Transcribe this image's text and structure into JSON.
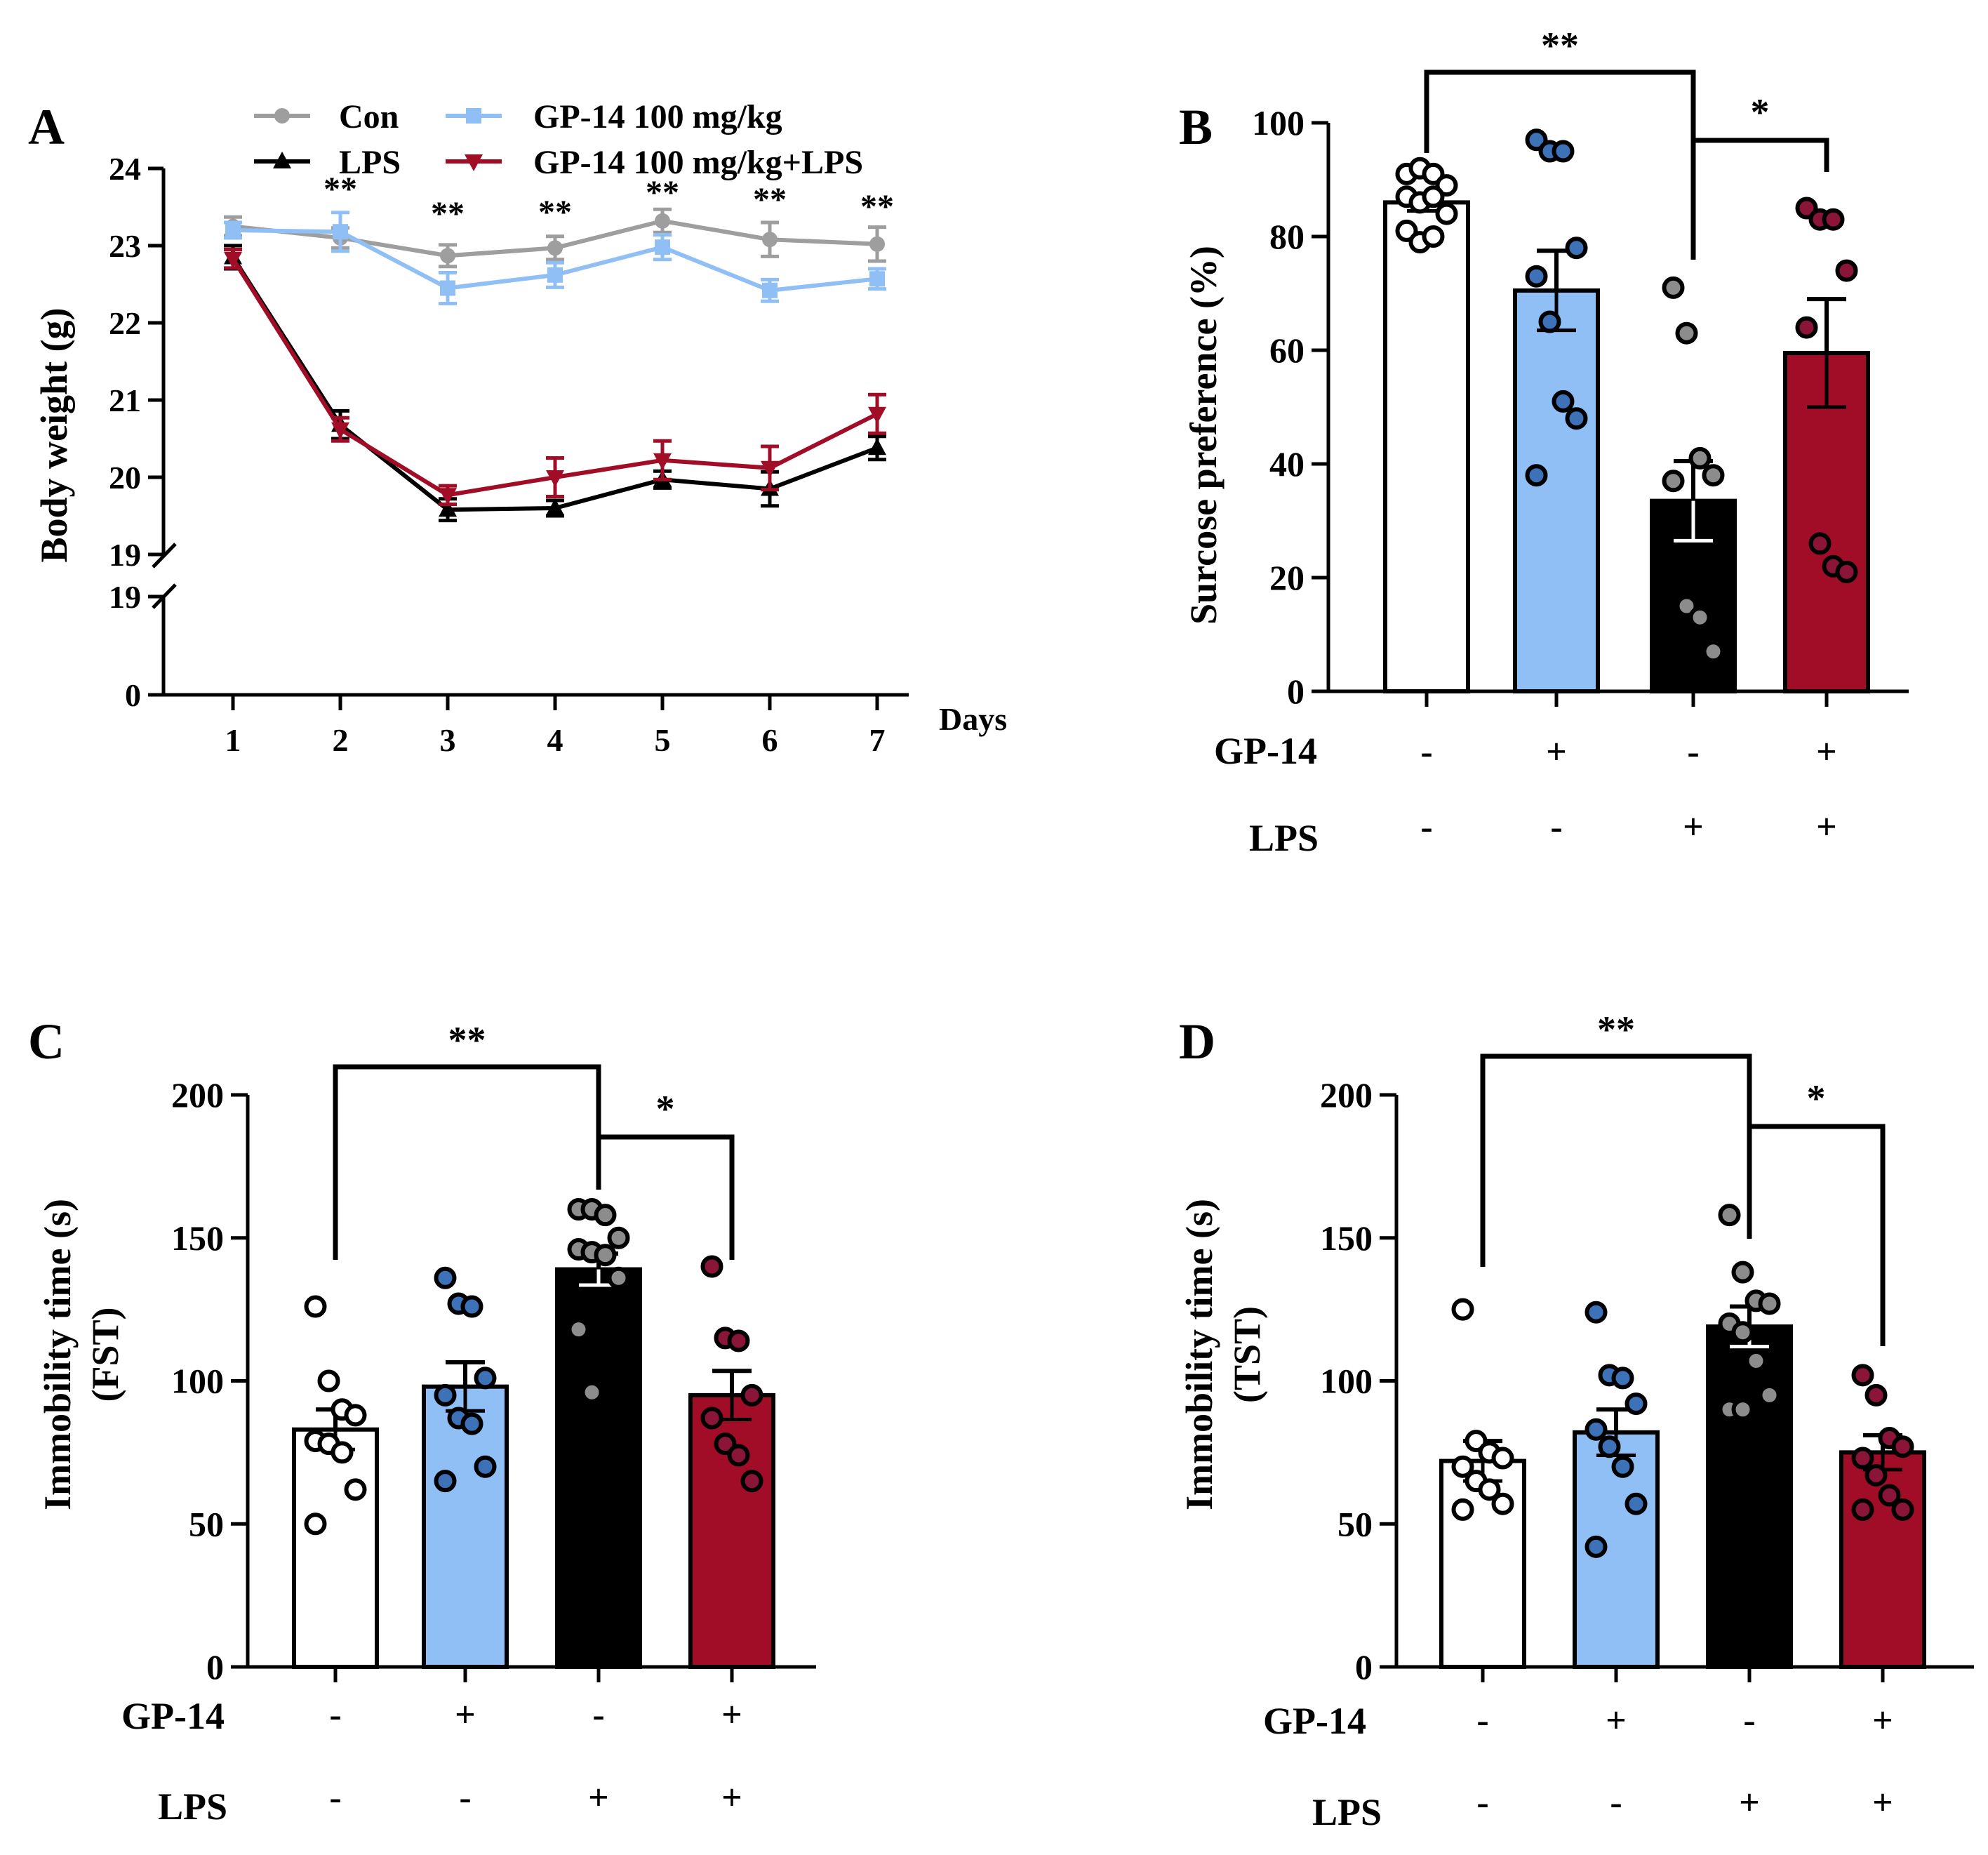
{
  "colors": {
    "con": "#9e9e9e",
    "gp": "#8fbff5",
    "lps": "#000000",
    "gplps": "#a10d27",
    "con_bar": "#ffffff",
    "con_dot": "#ffffff",
    "gp_dot": "#3d72b8",
    "lps_dot": "#8c8c8c",
    "gplps_dot": "#8b1538"
  },
  "chart_data": [
    {
      "panel": "A",
      "type": "line",
      "xlabel": "Days",
      "ylabel": "Body weight  (g)",
      "x": [
        1,
        2,
        3,
        4,
        5,
        6,
        7
      ],
      "upper_ylim": [
        19,
        24
      ],
      "upper_ticks": [
        "19",
        "20",
        "21",
        "22",
        "23",
        "24"
      ],
      "lower_ylim": [
        0,
        19
      ],
      "lower_ticks": [
        "0",
        "19"
      ],
      "x_ticks": [
        "1",
        "2",
        "3",
        "4",
        "5",
        "6",
        "7"
      ],
      "significance": [
        "**",
        "**",
        "**",
        "**",
        "**",
        "**"
      ],
      "legend": [
        "Con",
        "LPS",
        "GP-14 100 mg/kg",
        "GP-14 100 mg/kg+LPS"
      ],
      "series": [
        {
          "name": "Con",
          "color_key": "con",
          "marker": "circle",
          "values": [
            23.25,
            23.1,
            22.87,
            22.97,
            23.32,
            23.08,
            23.02
          ],
          "errors": [
            0.12,
            0.13,
            0.14,
            0.15,
            0.15,
            0.22,
            0.22
          ]
        },
        {
          "name": "GP-14 100 mg/kg",
          "color_key": "gp",
          "marker": "square",
          "values": [
            23.2,
            23.18,
            22.45,
            22.62,
            22.98,
            22.42,
            22.57
          ],
          "errors": [
            0.1,
            0.25,
            0.2,
            0.16,
            0.16,
            0.14,
            0.13
          ]
        },
        {
          "name": "LPS",
          "color_key": "lps",
          "marker": "triangle-up",
          "values": [
            22.85,
            20.68,
            19.58,
            19.6,
            19.97,
            19.85,
            20.38
          ],
          "errors": [
            0.15,
            0.18,
            0.14,
            0.1,
            0.11,
            0.22,
            0.15
          ]
        },
        {
          "name": "GP-14 100 mg/kg+LPS",
          "color_key": "gplps",
          "marker": "triangle-down",
          "values": [
            22.83,
            20.62,
            19.77,
            20.0,
            20.22,
            20.12,
            20.82
          ],
          "errors": [
            0.12,
            0.15,
            0.12,
            0.25,
            0.25,
            0.28,
            0.25
          ]
        }
      ]
    },
    {
      "panel": "B",
      "type": "bar",
      "ylabel": "Surcose preference (%)",
      "ylim": [
        0,
        100
      ],
      "y_ticks": [
        "0",
        "20",
        "40",
        "60",
        "80",
        "100"
      ],
      "row_labels": [
        "GP-14",
        "LPS"
      ],
      "gp14_signs": [
        "-",
        "+",
        "-",
        "+"
      ],
      "lps_signs": [
        "-",
        "-",
        "+",
        "+"
      ],
      "values": [
        86,
        70.5,
        33.5,
        59.5
      ],
      "errors": [
        1.5,
        7,
        7,
        9.5
      ],
      "points": [
        [
          91,
          92,
          91,
          89,
          87,
          86,
          87,
          84,
          81,
          79,
          80
        ],
        [
          97,
          95,
          95,
          78,
          73,
          65,
          51,
          48,
          38
        ],
        [
          71,
          63,
          41,
          38,
          37,
          15,
          13,
          7
        ],
        [
          85,
          83,
          83,
          74,
          64,
          26,
          22,
          21
        ]
      ],
      "brackets": [
        {
          "from": 0,
          "to": 2,
          "label": "**"
        },
        {
          "from": 2,
          "to": 3,
          "label": "*"
        }
      ]
    },
    {
      "panel": "C",
      "type": "bar",
      "ylabel": "Immobility time (s)",
      "ylabel2": "(FST)",
      "ylim": [
        0,
        200
      ],
      "y_ticks": [
        "0",
        "50",
        "100",
        "150",
        "200"
      ],
      "row_labels": [
        "GP-14",
        "LPS"
      ],
      "gp14_signs": [
        "-",
        "+",
        "-",
        "+"
      ],
      "lps_signs": [
        "-",
        "-",
        "+",
        "+"
      ],
      "values": [
        83,
        98,
        139,
        95
      ],
      "errors": [
        7,
        8.5,
        5.5,
        8.5
      ],
      "points": [
        [
          126,
          100,
          90,
          88,
          79,
          78,
          75,
          62,
          50
        ],
        [
          136,
          127,
          126,
          101,
          95,
          87,
          85,
          70,
          65
        ],
        [
          160,
          160,
          158,
          150,
          146,
          145,
          144,
          136,
          118,
          96
        ],
        [
          140,
          115,
          114,
          95,
          87,
          78,
          74,
          65
        ]
      ],
      "brackets": [
        {
          "from": 0,
          "to": 2,
          "label": "**"
        },
        {
          "from": 2,
          "to": 3,
          "label": "*"
        }
      ]
    },
    {
      "panel": "D",
      "type": "bar",
      "ylabel": "Immobility time (s)",
      "ylabel2": "(TST)",
      "ylim": [
        0,
        200
      ],
      "y_ticks": [
        "0",
        "50",
        "100",
        "150",
        "200"
      ],
      "row_labels": [
        "GP-14",
        "LPS"
      ],
      "gp14_signs": [
        "-",
        "+",
        "-",
        "+"
      ],
      "lps_signs": [
        "-",
        "-",
        "+",
        "+"
      ],
      "values": [
        72,
        82,
        119,
        75
      ],
      "errors": [
        7,
        8,
        7,
        6
      ],
      "points": [
        [
          125,
          79,
          75,
          73,
          70,
          65,
          62,
          57,
          55
        ],
        [
          124,
          102,
          101,
          92,
          83,
          77,
          70,
          57,
          42
        ],
        [
          158,
          138,
          128,
          127,
          120,
          117,
          107,
          95,
          90,
          90
        ],
        [
          102,
          95,
          80,
          77,
          73,
          67,
          60,
          55,
          55
        ]
      ],
      "brackets": [
        {
          "from": 0,
          "to": 2,
          "label": "**"
        },
        {
          "from": 2,
          "to": 3,
          "label": "*"
        }
      ]
    }
  ]
}
